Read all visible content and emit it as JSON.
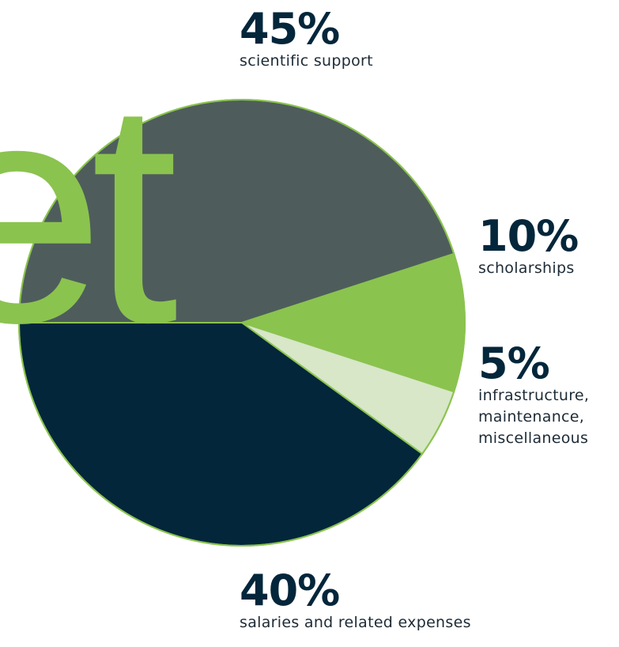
{
  "watermark": "et",
  "colors": {
    "scientific": "#4e5d5c",
    "scholarships": "#8bc34f",
    "infrastructure": "#d7e7c8",
    "salaries": "#03263b",
    "outline": "#8bc34f",
    "text": "#03263b"
  },
  "chart_data": {
    "type": "pie",
    "title": "",
    "slices": [
      {
        "label": "scientific support",
        "value": 45,
        "display": "45%"
      },
      {
        "label": "scholarships",
        "value": 10,
        "display": "10%"
      },
      {
        "label": "infrastructure, maintenance, miscellaneous",
        "value": 5,
        "display": "5%"
      },
      {
        "label": "salaries and related expenses",
        "value": 40,
        "display": "40%"
      }
    ]
  },
  "callouts": {
    "scientific": {
      "pct": "45%",
      "label": "scientific support"
    },
    "scholarships": {
      "pct": "10%",
      "label": "scholarships"
    },
    "infrastructure": {
      "pct": "5%",
      "label": "infrastructure,\nmaintenance,\nmiscellaneous"
    },
    "salaries": {
      "pct": "40%",
      "label": "salaries and related expenses"
    }
  }
}
